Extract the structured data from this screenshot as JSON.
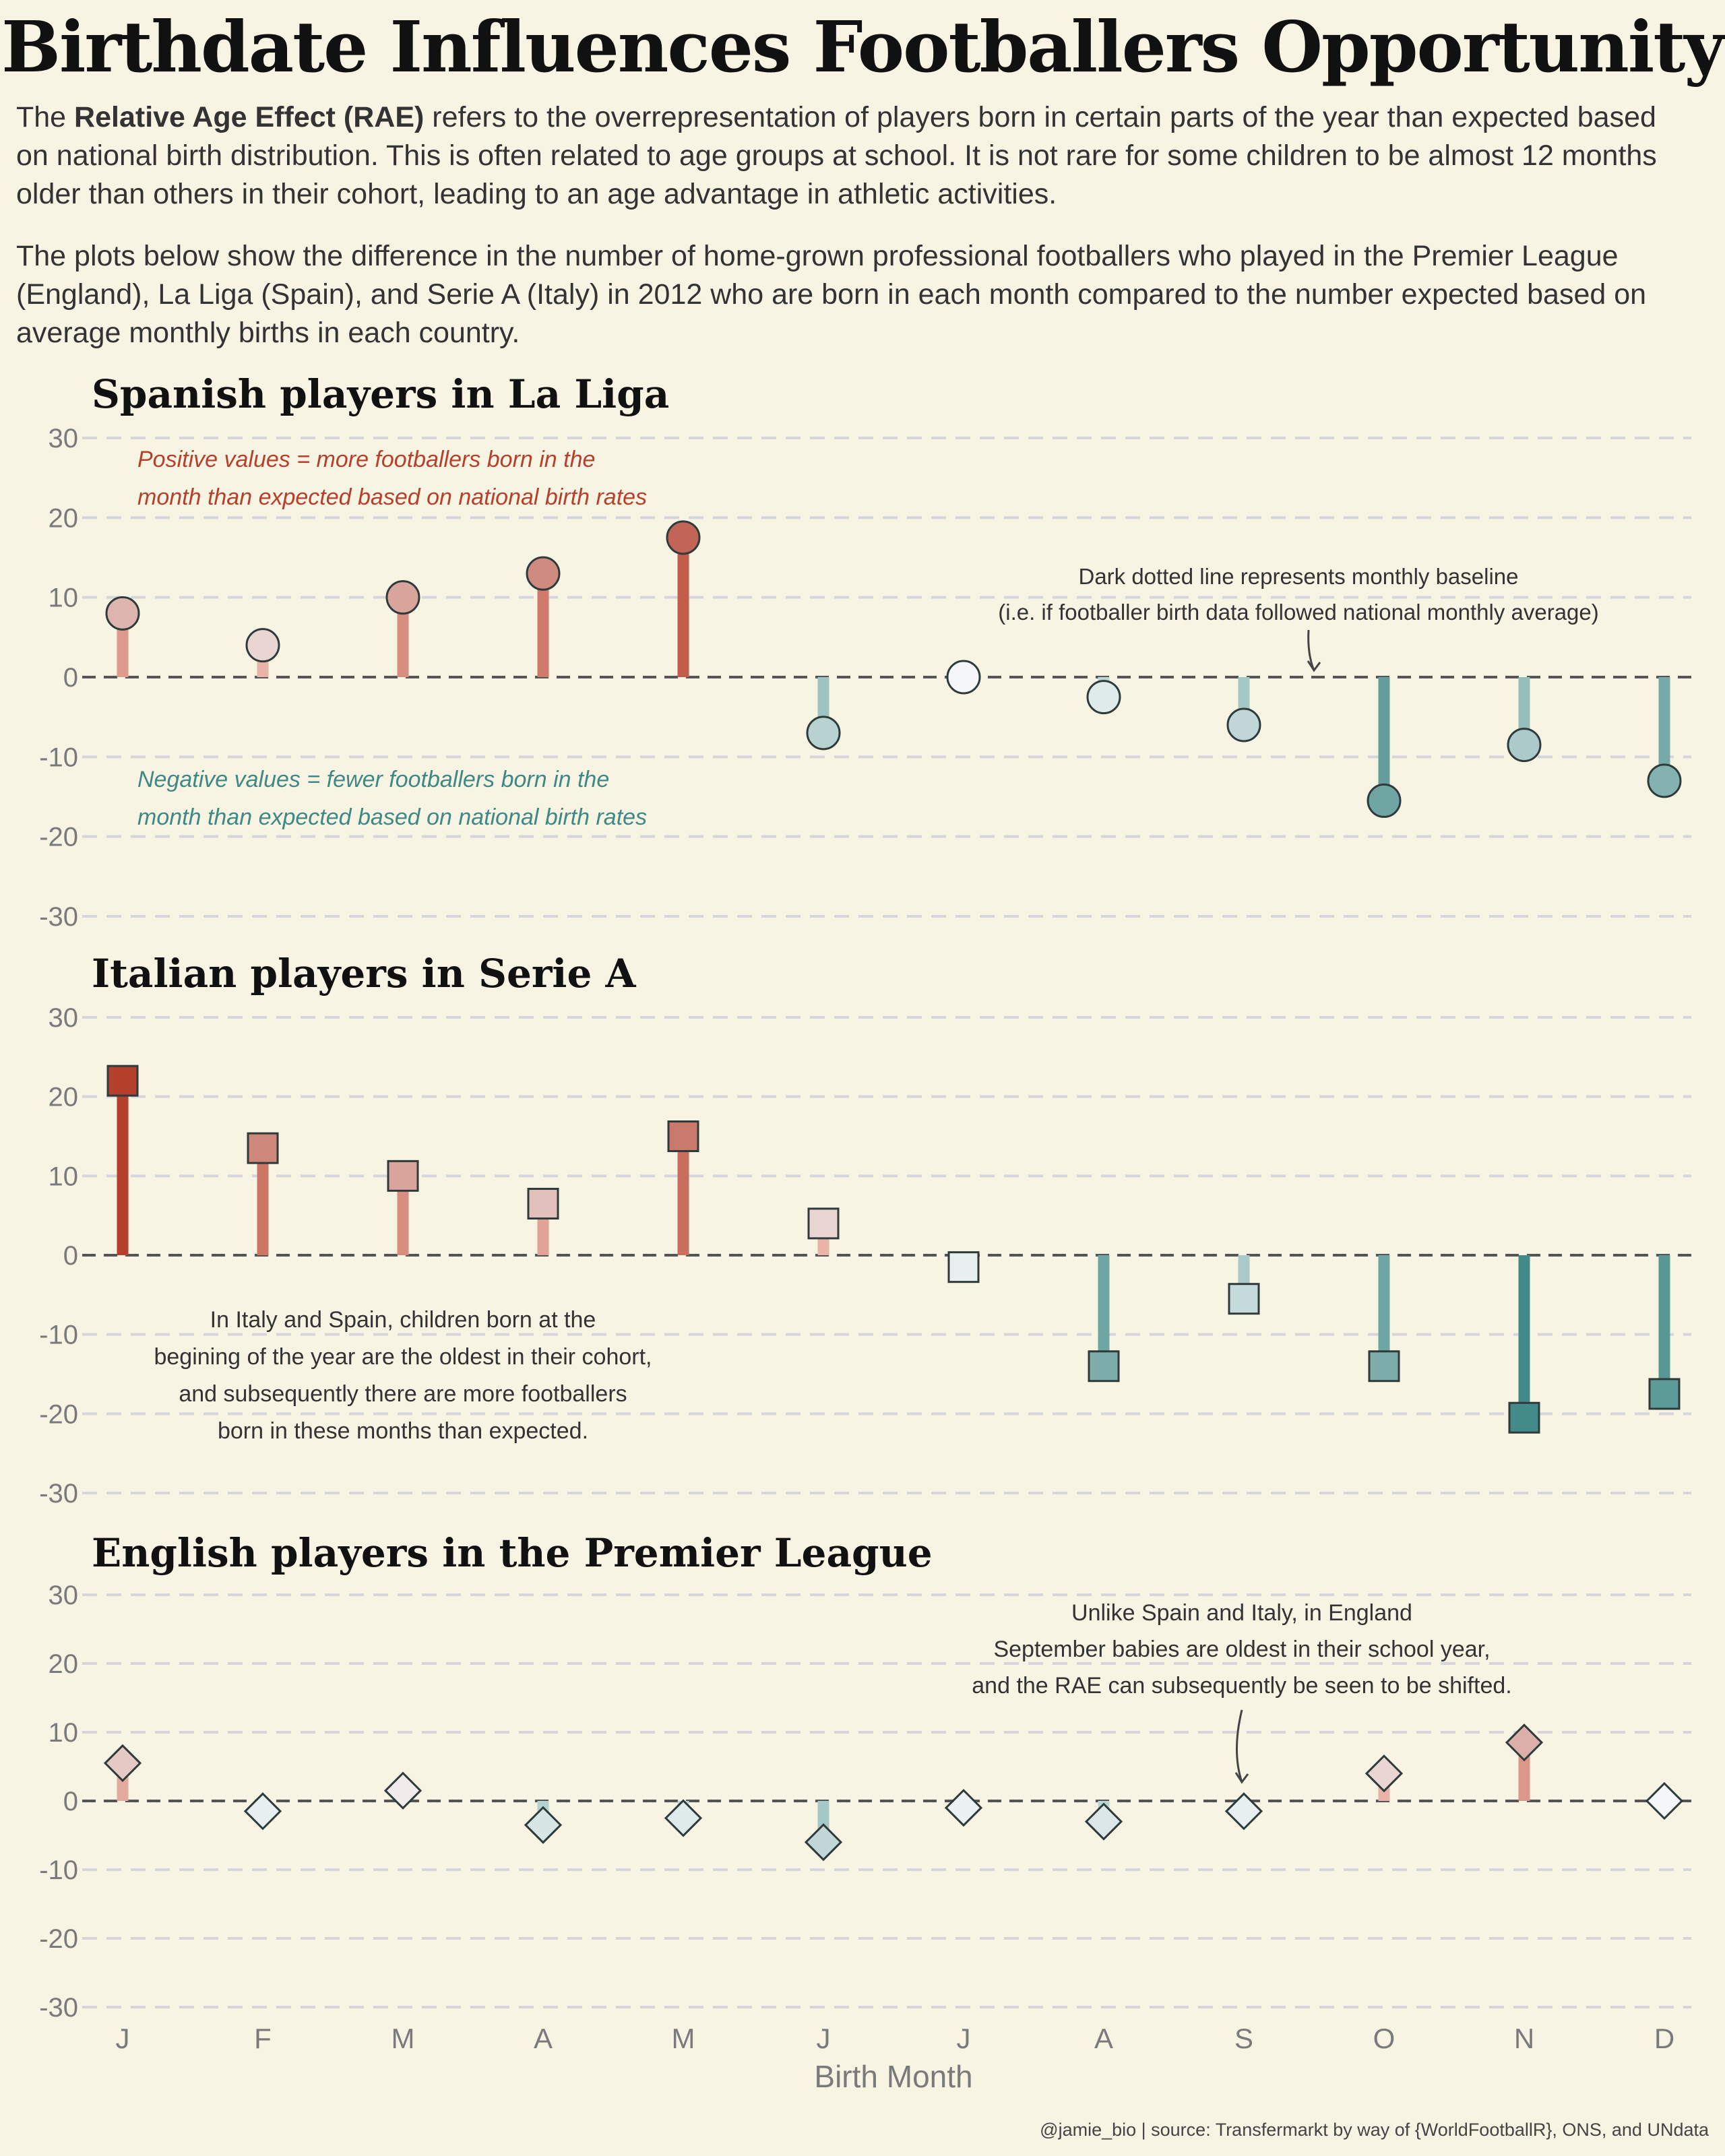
{
  "title": "Birthdate Influences Footballers Opportunity",
  "intro": {
    "p1_before": "The ",
    "p1_bold": "Relative Age Effect (RAE)",
    "p1_after": " refers to the overrepresentation of players born in certain parts of the year than expected based on national birth distribution. This is often related to age groups at school. It is not rare for some children to be almost 12 months older than others in their cohort, leading to an age advantage in athletic activities.",
    "p2": "The plots below show the difference in the number of home-grown professional footballers who played in the Premier League (England), La Liga (Spain), and Serie A (Italy) in 2012 who are born in each month compared to the number expected based on average monthly births in each country."
  },
  "footer": "@jamie_bio | source: Transfermarkt by way of {WorldFootballR}, ONS, and UNdata",
  "colors": {
    "background": "#f8f4e4",
    "positive_strong": "#b5402c",
    "negative_strong": "#3f8885",
    "neutral": "#f5f7f8",
    "grid": "#d5d5db",
    "baseline": "#555555"
  },
  "chart_data": [
    {
      "type": "lollipop",
      "title": "Spanish players in La Liga",
      "marker": "circle",
      "categories": [
        "J",
        "F",
        "M",
        "A",
        "M",
        "J",
        "J",
        "A",
        "S",
        "O",
        "N",
        "D"
      ],
      "values": [
        8,
        4,
        10,
        13,
        17.5,
        -7,
        0,
        -2.5,
        -6,
        -15.5,
        -8.5,
        -13
      ],
      "ylim": [
        -30,
        30
      ],
      "yticks": [
        30,
        20,
        10,
        0,
        -10,
        -20,
        -30
      ],
      "grid": true,
      "annotations": [
        {
          "text": "Positive values = more footballers born in the\nmonth than expected based on national birth rates",
          "style": "italic",
          "color": "#b5402c"
        },
        {
          "text": "Negative values = fewer footballers born in the\nmonth than expected based on national birth rates",
          "style": "italic",
          "color": "#3f8885"
        },
        {
          "text": "Dark dotted line represents monthly baseline\n(i.e. if footballer birth data followed national monthly average)",
          "style": "normal",
          "color": "#333333",
          "arrow": true
        }
      ]
    },
    {
      "type": "lollipop",
      "title": "Italian players in Serie A",
      "marker": "square",
      "categories": [
        "J",
        "F",
        "M",
        "A",
        "M",
        "J",
        "J",
        "A",
        "S",
        "O",
        "N",
        "D"
      ],
      "values": [
        22,
        13.5,
        10,
        6.5,
        15,
        4,
        -1.5,
        -14,
        -5.5,
        -14,
        -20.5,
        -17.5
      ],
      "ylim": [
        -30,
        30
      ],
      "yticks": [
        30,
        20,
        10,
        0,
        -10,
        -20,
        -30
      ],
      "grid": true,
      "annotations": [
        {
          "text": "In Italy and Spain, children born at the\nbegining of the year are the oldest in their cohort,\nand subsequently there are more footballers\nborn in these months than expected.",
          "style": "normal",
          "color": "#333333"
        }
      ]
    },
    {
      "type": "lollipop",
      "title": "English players in the Premier League",
      "marker": "diamond",
      "categories": [
        "J",
        "F",
        "M",
        "A",
        "M",
        "J",
        "J",
        "A",
        "S",
        "O",
        "N",
        "D"
      ],
      "values": [
        5.5,
        -1.5,
        1.5,
        -3.5,
        -2.5,
        -6,
        -1,
        -3,
        -1.5,
        4,
        8.5,
        0
      ],
      "ylim": [
        -30,
        30
      ],
      "yticks": [
        30,
        20,
        10,
        0,
        -10,
        -20,
        -30
      ],
      "grid": true,
      "xlabel": "Birth Month",
      "annotations": [
        {
          "text": "Unlike Spain and Italy, in England\nSeptember babies are oldest in their school year,\nand the RAE can subsequently be seen to be shifted.",
          "style": "normal",
          "color": "#333333",
          "arrow": true
        }
      ]
    }
  ]
}
